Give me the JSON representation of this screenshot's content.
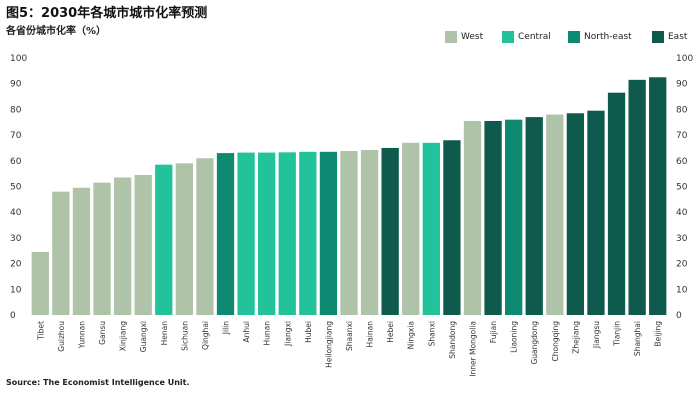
{
  "chart_data": {
    "type": "bar",
    "title": "图5：2030年各城市城市化率预测",
    "ylabel": "各省份城市化率（%）",
    "source": "Source: The Economist Intelligence Unit.",
    "ylim": [
      0,
      100
    ],
    "yticks": [
      0,
      10,
      20,
      30,
      40,
      50,
      60,
      70,
      80,
      90,
      100
    ],
    "grid": false,
    "legend_position": "top-right",
    "regions": [
      {
        "name": "West",
        "color": "#aec3a7"
      },
      {
        "name": "Central",
        "color": "#22c39a"
      },
      {
        "name": "North-east",
        "color": "#0f8a72"
      },
      {
        "name": "East",
        "color": "#0e5a4c"
      }
    ],
    "categories": [
      "Tibet",
      "Guizhou",
      "Yunnan",
      "Gansu",
      "Xinjiang",
      "Guangxi",
      "Henan",
      "Sichuan",
      "Qinghai",
      "Jilin",
      "Anhui",
      "Hunan",
      "Jiangxi",
      "Hubei",
      "Heilongjiang",
      "Shaanxi",
      "Hainan",
      "Hebei",
      "Ningxia",
      "Shanxi",
      "Shandong",
      "Inner Mongolia",
      "Fujian",
      "Liaoning",
      "Guangdong",
      "Chongqing",
      "Zhejiang",
      "Jiangsu",
      "Tianjin",
      "Shanghai",
      "Beijing"
    ],
    "region_of": [
      "West",
      "West",
      "West",
      "West",
      "West",
      "West",
      "Central",
      "West",
      "West",
      "North-east",
      "Central",
      "Central",
      "Central",
      "Central",
      "North-east",
      "West",
      "West",
      "East",
      "West",
      "Central",
      "East",
      "West",
      "East",
      "North-east",
      "East",
      "West",
      "East",
      "East",
      "East",
      "East",
      "East"
    ],
    "values": [
      24.5,
      48,
      49.5,
      51.5,
      53.5,
      54.5,
      58.5,
      59,
      61,
      63,
      63.2,
      63.2,
      63.3,
      63.5,
      63.5,
      63.8,
      64.2,
      65,
      67,
      67,
      68,
      75.5,
      75.5,
      76,
      77,
      78,
      78.5,
      79.5,
      86.5,
      91.5,
      92.5
    ]
  }
}
